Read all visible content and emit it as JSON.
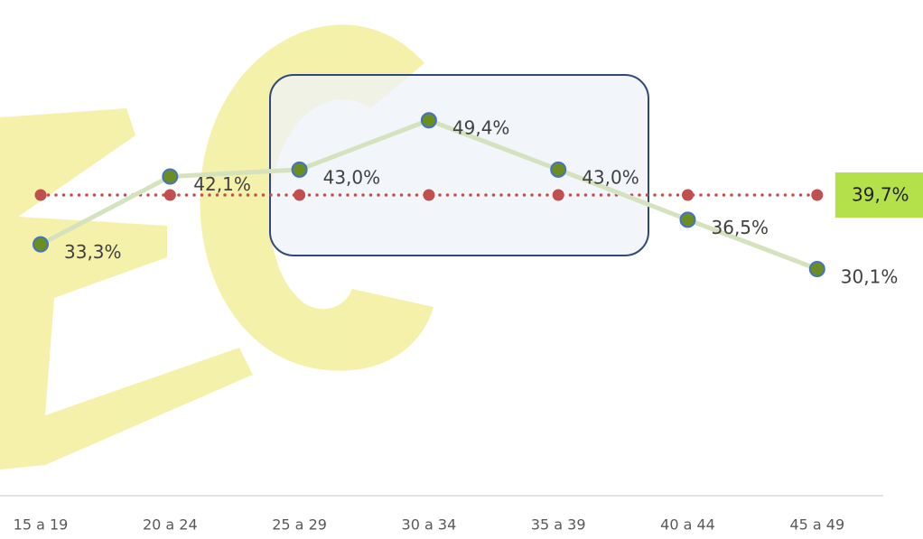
{
  "chart_data": {
    "type": "line",
    "categories": [
      "15 a 19",
      "20 a 24",
      "25 a 29",
      "30 a 34",
      "35 a 39",
      "40 a 44",
      "45 a 49"
    ],
    "series": [
      {
        "color": "#d4e2bd",
        "marker_color": "#6b8e23",
        "marker_edge": "#4472c4",
        "line_style": "solid",
        "values": [
          33.3,
          42.1,
          43.0,
          49.4,
          43.0,
          36.5,
          30.1
        ],
        "value_labels": [
          "33,3%",
          "42,1%",
          "43,0%",
          "49,4%",
          "43,0%",
          "36,5%",
          "30,1%"
        ]
      },
      {
        "color": "#c0504d",
        "marker_color": "#c0504d",
        "line_style": "dotted",
        "values": [
          39.7,
          39.7,
          39.7,
          39.7,
          39.7,
          39.7,
          39.7
        ],
        "value_labels": [
          null,
          null,
          null,
          null,
          null,
          null,
          "39,7%"
        ]
      }
    ],
    "ylim": [
      0,
      65
    ],
    "grid": false
  }
}
